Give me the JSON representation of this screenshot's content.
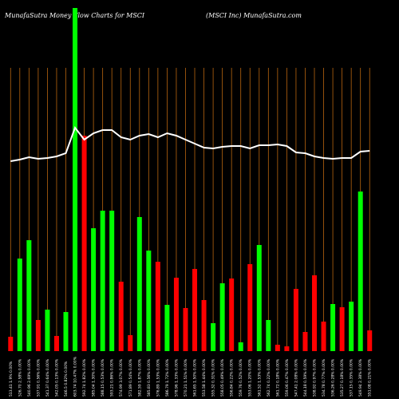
{
  "chart_data": {
    "type": "bar",
    "title": "MunafaSutra  Money Flow  Charts for MSCI",
    "subtitle": "(MSCI Inc) MunafaSutra.com",
    "categories": [
      "513.41 1.9% 0.00%",
      "526.70 2.58% 0.00%",
      "540.96 2.69% 0.00%",
      "537.91 0.56% 0.00%",
      "541.37 0.64% 0.00%",
      "542.05 0.13% 0.00%",
      "546.5 0.82% 0.00%",
      "603.74 10.47% 0.00%",
      "592.74 1.82% 0.00%",
      "585.04 1.30% 0.00%",
      "588.15 0.53% 0.00%",
      "593.21 0.86% 0.00%",
      "574.99 3.07% 0.00%",
      "571.89 0.54% 0.00%",
      "582.59 1.87% 0.00%",
      "585.83 0.56% 0.00%",
      "576.89 1.53% 0.00%",
      "586.79 1.72% 0.00%",
      "578.96 1.33% 0.00%",
      "570.21 1.51% 0.00%",
      "561.65 1.50% 0.00%",
      "553.58 1.44% 0.00%",
      "555.32 0.31% 0.00%",
      "558.05 0.49% 0.00%",
      "556.84 0.22% 0.00%",
      "559.76 0.52% 0.00%",
      "553.06 1.20% 0.00%",
      "561.52 1.53% 0.00%",
      "562.74 0.22% 0.00%",
      "561.72 0.18% 0.00%",
      "559.06 0.47% 0.00%",
      "547.41 2.08% 0.00%",
      "544.18 0.59% 0.00%",
      "538.92 0.97% 0.00%",
      "534.78 0.77% 0.00%",
      "536.26 0.28% 0.00%",
      "535.27 0.18% 0.00%",
      "537.15 0.35% 0.00%",
      "549.94 2.38% 0.00%",
      "551.08 0.21% 0.00%"
    ],
    "values": [
      18,
      116,
      139,
      39,
      52,
      19,
      49,
      430,
      270,
      154,
      176,
      176,
      87,
      20,
      168,
      126,
      112,
      58,
      92,
      54,
      103,
      64,
      35,
      85,
      91,
      11,
      109,
      133,
      39,
      8,
      6,
      78,
      24,
      95,
      37,
      59,
      55,
      62,
      200,
      26
    ],
    "colors": [
      "#ff0000",
      "#00ff00",
      "#00ff00",
      "#ff0000",
      "#00ff00",
      "#ff0000",
      "#00ff00",
      "#00ff00",
      "#ff0000",
      "#00ff00",
      "#00ff00",
      "#00ff00",
      "#ff0000",
      "#ff0000",
      "#00ff00",
      "#00ff00",
      "#ff0000",
      "#00ff00",
      "#ff0000",
      "#ff0000",
      "#ff0000",
      "#ff0000",
      "#00ff00",
      "#00ff00",
      "#ff0000",
      "#00ff00",
      "#ff0000",
      "#00ff00",
      "#00ff00",
      "#ff0000",
      "#ff0000",
      "#ff0000",
      "#ff0000",
      "#ff0000",
      "#ff0000",
      "#00ff00",
      "#ff0000",
      "#00ff00",
      "#00ff00",
      "#ff0000"
    ],
    "line_values": [
      238,
      240,
      243,
      241,
      242,
      244,
      248,
      280,
      265,
      273,
      277,
      277,
      268,
      265,
      270,
      272,
      268,
      273,
      270,
      265,
      260,
      255,
      254,
      256,
      257,
      257,
      254,
      258,
      258,
      259,
      257,
      249,
      248,
      244,
      242,
      241,
      242,
      242,
      250,
      251
    ],
    "line_color": "#ffffff",
    "grid_color": "#b8650f",
    "ylim": [
      0,
      440
    ]
  }
}
